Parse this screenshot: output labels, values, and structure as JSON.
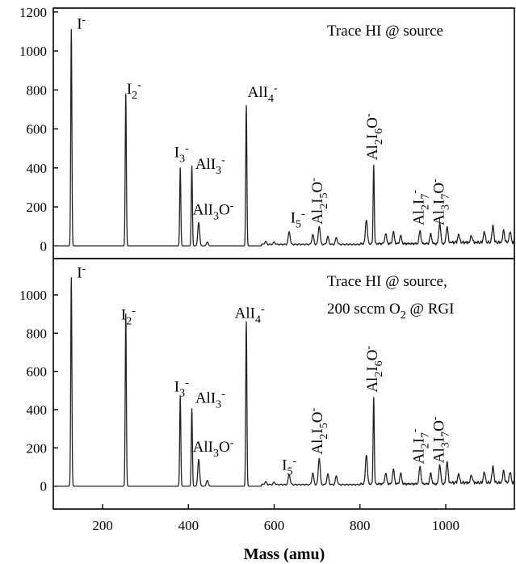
{
  "chart_data": {
    "type": "line",
    "xlabel": "Mass (amu)",
    "xlim": [
      85,
      1160
    ],
    "xticks": [
      200,
      400,
      600,
      800,
      1000
    ],
    "panels": [
      {
        "title_lines": [
          "Trace HI @ source"
        ],
        "title_o2_line": null,
        "ylim": [
          -65,
          1220
        ],
        "yticks": [
          0,
          200,
          400,
          600,
          800,
          1000,
          1200
        ],
        "peaks": [
          {
            "x": 127,
            "y": 1110
          },
          {
            "x": 254,
            "y": 780
          },
          {
            "x": 381,
            "y": 400
          },
          {
            "x": 408,
            "y": 410
          },
          {
            "x": 424,
            "y": 120
          },
          {
            "x": 444,
            "y": 20
          },
          {
            "x": 535,
            "y": 720
          },
          {
            "x": 580,
            "y": 15
          },
          {
            "x": 600,
            "y": 12
          },
          {
            "x": 635,
            "y": 65
          },
          {
            "x": 690,
            "y": 50
          },
          {
            "x": 705,
            "y": 95
          },
          {
            "x": 725,
            "y": 40
          },
          {
            "x": 745,
            "y": 35
          },
          {
            "x": 815,
            "y": 125
          },
          {
            "x": 832,
            "y": 410
          },
          {
            "x": 860,
            "y": 50
          },
          {
            "x": 878,
            "y": 60
          },
          {
            "x": 895,
            "y": 40
          },
          {
            "x": 940,
            "y": 65
          },
          {
            "x": 965,
            "y": 50
          },
          {
            "x": 986,
            "y": 105
          },
          {
            "x": 1003,
            "y": 80
          },
          {
            "x": 1030,
            "y": 40
          },
          {
            "x": 1060,
            "y": 35
          },
          {
            "x": 1090,
            "y": 55
          },
          {
            "x": 1110,
            "y": 85
          },
          {
            "x": 1135,
            "y": 60
          },
          {
            "x": 1150,
            "y": 55
          }
        ],
        "labels": [
          {
            "x": 140,
            "y": 1115,
            "parts": [
              {
                "t": "I"
              },
              {
                "t": "-",
                "s": "sup"
              }
            ]
          },
          {
            "x": 256,
            "y": 780,
            "parts": [
              {
                "t": "I"
              },
              {
                "t": "2",
                "s": "sub"
              },
              {
                "t": "-",
                "s": "sup"
              }
            ]
          },
          {
            "x": 367,
            "y": 455,
            "parts": [
              {
                "t": "I"
              },
              {
                "t": "3",
                "s": "sub"
              },
              {
                "t": "-",
                "s": "sup"
              }
            ]
          },
          {
            "x": 416,
            "y": 395,
            "parts": [
              {
                "t": "AlI"
              },
              {
                "t": "3",
                "s": "sub"
              },
              {
                "t": "-",
                "s": "sup"
              }
            ]
          },
          {
            "x": 410,
            "y": 160,
            "parts": [
              {
                "t": "AlI"
              },
              {
                "t": "3",
                "s": "sub"
              },
              {
                "t": "O"
              },
              {
                "t": "-",
                "s": "sup"
              }
            ]
          },
          {
            "x": 538,
            "y": 765,
            "parts": [
              {
                "t": "AlI"
              },
              {
                "t": "4",
                "s": "sub"
              },
              {
                "t": "-",
                "s": "sup"
              }
            ]
          },
          {
            "x": 638,
            "y": 120,
            "parts": [
              {
                "t": "I"
              },
              {
                "t": "5",
                "s": "sub"
              },
              {
                "t": "-",
                "s": "sup"
              }
            ]
          }
        ],
        "vlabels": [
          {
            "x": 712,
            "y": 110,
            "parts": [
              {
                "t": "Al"
              },
              {
                "t": "2",
                "s": "sub"
              },
              {
                "t": "I"
              },
              {
                "t": "5",
                "s": "sub"
              },
              {
                "t": "O"
              },
              {
                "t": "-",
                "s": "sup"
              }
            ]
          },
          {
            "x": 840,
            "y": 440,
            "parts": [
              {
                "t": "Al"
              },
              {
                "t": "2",
                "s": "sub"
              },
              {
                "t": "I"
              },
              {
                "t": "6",
                "s": "sub"
              },
              {
                "t": "O"
              },
              {
                "t": "-",
                "s": "sup"
              }
            ]
          },
          {
            "x": 948,
            "y": 105,
            "parts": [
              {
                "t": "Al"
              },
              {
                "t": "2",
                "s": "sub"
              },
              {
                "t": "I"
              },
              {
                "t": "7",
                "s": "sub"
              },
              {
                "t": "-",
                "s": "sup"
              }
            ]
          },
          {
            "x": 995,
            "y": 105,
            "parts": [
              {
                "t": "Al"
              },
              {
                "t": "3",
                "s": "sub"
              },
              {
                "t": "I"
              },
              {
                "t": "7",
                "s": "sub"
              },
              {
                "t": "O"
              },
              {
                "t": "-",
                "s": "sup"
              }
            ]
          }
        ]
      },
      {
        "title_lines": [
          "Trace HI @ source,"
        ],
        "title_o2_line": [
          {
            "t": "200 sccm O"
          },
          {
            "t": "2",
            "s": "sub"
          },
          {
            "t": " @ RGI"
          }
        ],
        "ylim": [
          -120,
          1190
        ],
        "yticks": [
          0,
          200,
          400,
          600,
          800,
          1000
        ],
        "peaks": [
          {
            "x": 127,
            "y": 1090
          },
          {
            "x": 254,
            "y": 900
          },
          {
            "x": 381,
            "y": 470
          },
          {
            "x": 408,
            "y": 405
          },
          {
            "x": 424,
            "y": 140
          },
          {
            "x": 444,
            "y": 30
          },
          {
            "x": 535,
            "y": 860
          },
          {
            "x": 580,
            "y": 15
          },
          {
            "x": 600,
            "y": 12
          },
          {
            "x": 635,
            "y": 55
          },
          {
            "x": 690,
            "y": 60
          },
          {
            "x": 705,
            "y": 140
          },
          {
            "x": 725,
            "y": 55
          },
          {
            "x": 745,
            "y": 45
          },
          {
            "x": 815,
            "y": 155
          },
          {
            "x": 832,
            "y": 460
          },
          {
            "x": 860,
            "y": 55
          },
          {
            "x": 878,
            "y": 75
          },
          {
            "x": 895,
            "y": 55
          },
          {
            "x": 940,
            "y": 90
          },
          {
            "x": 965,
            "y": 55
          },
          {
            "x": 986,
            "y": 100
          },
          {
            "x": 1003,
            "y": 110
          },
          {
            "x": 1030,
            "y": 45
          },
          {
            "x": 1060,
            "y": 40
          },
          {
            "x": 1090,
            "y": 55
          },
          {
            "x": 1110,
            "y": 85
          },
          {
            "x": 1135,
            "y": 60
          },
          {
            "x": 1150,
            "y": 55
          }
        ],
        "labels": [
          {
            "x": 140,
            "y": 1090,
            "parts": [
              {
                "t": "I"
              },
              {
                "t": "-",
                "s": "sup"
              }
            ]
          },
          {
            "x": 243,
            "y": 870,
            "parts": [
              {
                "t": "I"
              },
              {
                "t": "2",
                "s": "sub"
              },
              {
                "t": "-",
                "s": "sup"
              }
            ]
          },
          {
            "x": 367,
            "y": 495,
            "parts": [
              {
                "t": "I"
              },
              {
                "t": "3",
                "s": "sub"
              },
              {
                "t": "-",
                "s": "sup"
              }
            ]
          },
          {
            "x": 416,
            "y": 435,
            "parts": [
              {
                "t": "AlI"
              },
              {
                "t": "3",
                "s": "sub"
              },
              {
                "t": "-",
                "s": "sup"
              }
            ]
          },
          {
            "x": 410,
            "y": 180,
            "parts": [
              {
                "t": "AlI"
              },
              {
                "t": "3",
                "s": "sub"
              },
              {
                "t": "O"
              },
              {
                "t": "-",
                "s": "sup"
              }
            ]
          },
          {
            "x": 508,
            "y": 880,
            "parts": [
              {
                "t": "AlI"
              },
              {
                "t": "4",
                "s": "sub"
              },
              {
                "t": "-",
                "s": "sup"
              }
            ]
          },
          {
            "x": 618,
            "y": 85,
            "parts": [
              {
                "t": "I"
              },
              {
                "t": "5",
                "s": "sub"
              },
              {
                "t": "-",
                "s": "sup"
              }
            ]
          }
        ],
        "vlabels": [
          {
            "x": 712,
            "y": 165,
            "parts": [
              {
                "t": "Al"
              },
              {
                "t": "2",
                "s": "sub"
              },
              {
                "t": "I"
              },
              {
                "t": "5",
                "s": "sub"
              },
              {
                "t": "O"
              },
              {
                "t": "-",
                "s": "sup"
              }
            ]
          },
          {
            "x": 840,
            "y": 490,
            "parts": [
              {
                "t": "Al"
              },
              {
                "t": "2",
                "s": "sub"
              },
              {
                "t": "I"
              },
              {
                "t": "6",
                "s": "sub"
              },
              {
                "t": "O"
              },
              {
                "t": "-",
                "s": "sup"
              }
            ]
          },
          {
            "x": 948,
            "y": 115,
            "parts": [
              {
                "t": "Al"
              },
              {
                "t": "2",
                "s": "sub"
              },
              {
                "t": "I"
              },
              {
                "t": "7",
                "s": "sub"
              },
              {
                "t": "-",
                "s": "sup"
              }
            ]
          },
          {
            "x": 995,
            "y": 120,
            "parts": [
              {
                "t": "Al"
              },
              {
                "t": "3",
                "s": "sub"
              },
              {
                "t": "I"
              },
              {
                "t": "7",
                "s": "sub"
              },
              {
                "t": "O"
              },
              {
                "t": "-",
                "s": "sup"
              }
            ]
          }
        ]
      }
    ]
  }
}
